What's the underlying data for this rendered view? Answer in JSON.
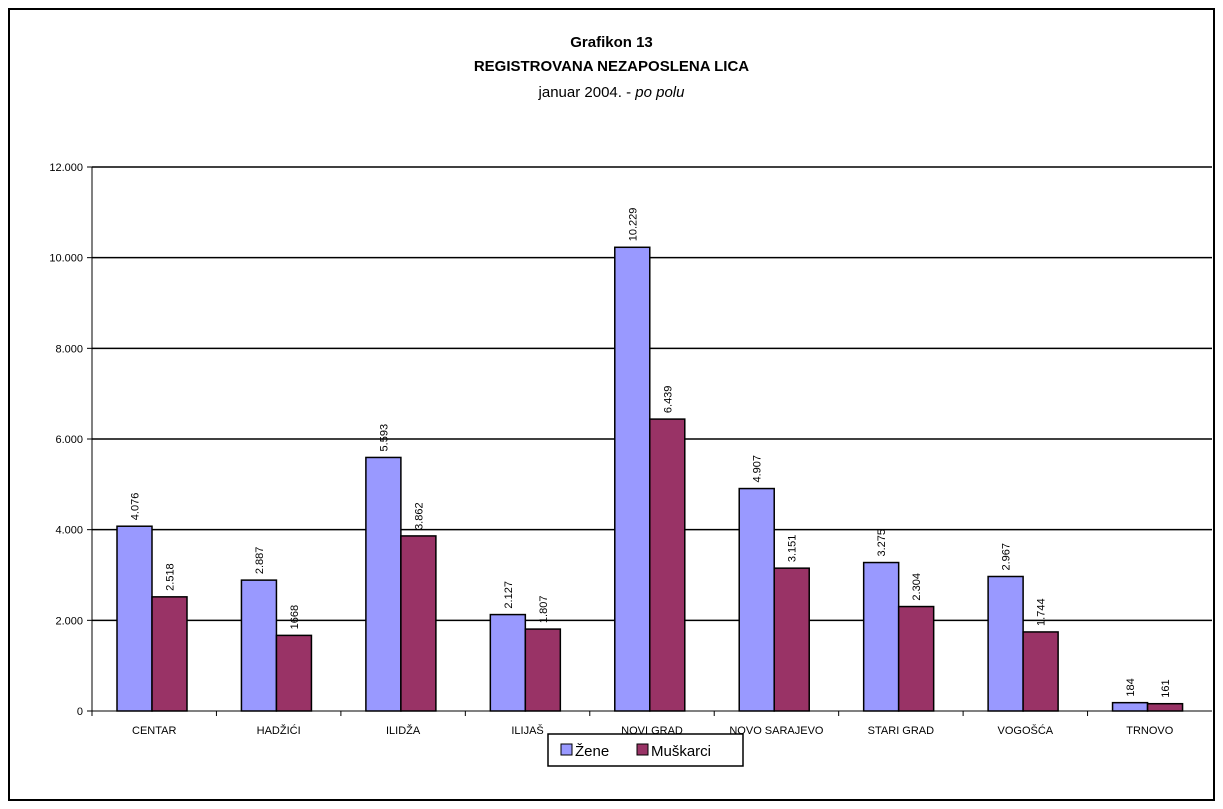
{
  "chart_data": {
    "type": "bar",
    "title_line1": "Grafikon 13",
    "title_line2": "REGISTROVANA NEZAPOSLENA LICA",
    "subtitle_plain": "januar 2004. - ",
    "subtitle_italic": "po polu",
    "categories": [
      "CENTAR",
      "HADŽIĆI",
      "ILIDŽA",
      "ILIJAŠ",
      "NOVI GRAD",
      "NOVO SARAJEVO",
      "STARI GRAD",
      "VOGOŠĆA",
      "TRNOVO"
    ],
    "series": [
      {
        "name": "Žene",
        "color": "#9999ff",
        "values": [
          4076,
          2887,
          5593,
          2127,
          10229,
          4907,
          3275,
          2967,
          184
        ],
        "labels": [
          "4.076",
          "2.887",
          "5.593",
          "2.127",
          "10.229",
          "4.907",
          "3.275",
          "2.967",
          "184"
        ]
      },
      {
        "name": "Muškarci",
        "color": "#993366",
        "values": [
          2518,
          1668,
          3862,
          1807,
          6439,
          3151,
          2304,
          1744,
          161
        ],
        "labels": [
          "2.518",
          "1668",
          "3.862",
          "1.807",
          "6.439",
          "3.151",
          "2.304",
          "1.744",
          "161"
        ]
      }
    ],
    "ylim": [
      0,
      12000
    ],
    "yticks": [
      0,
      2000,
      4000,
      6000,
      8000,
      10000,
      12000
    ],
    "ytick_labels": [
      "0",
      "2.000",
      "4.000",
      "6.000",
      "8.000",
      "10.000",
      "12.000"
    ],
    "grid": true,
    "legend_position": "bottom"
  }
}
